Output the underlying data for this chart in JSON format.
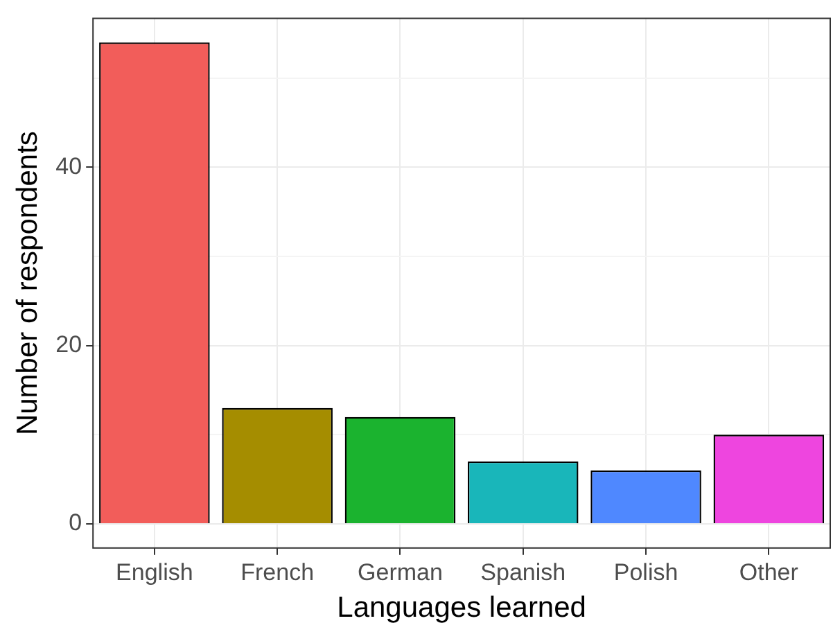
{
  "chart_data": {
    "type": "bar",
    "xlabel": "Languages learned",
    "ylabel": "Number of respondents",
    "categories": [
      "English",
      "French",
      "German",
      "Spanish",
      "Polish",
      "Other"
    ],
    "values": [
      54,
      13,
      12,
      7,
      6,
      10
    ],
    "colors": [
      "#f25d5a",
      "#a58d00",
      "#1bb32f",
      "#19b6ba",
      "#4f88ff",
      "#ee45df"
    ],
    "ylim": [
      -2.7,
      56.7
    ],
    "yticks": [
      0,
      {
        "value": 10,
        "label": null
      },
      20,
      {
        "value": 30,
        "label": null
      },
      40,
      {
        "value": 50,
        "label": null
      }
    ],
    "grid": true,
    "legend": false
  }
}
